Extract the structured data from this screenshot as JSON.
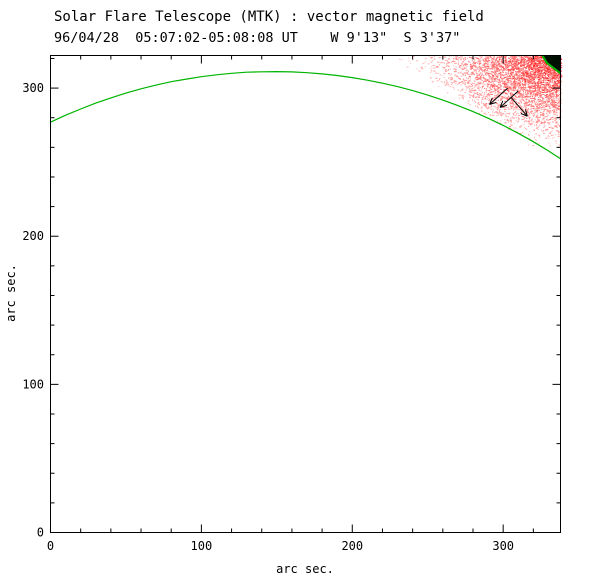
{
  "header": {
    "title": "Solar Flare Telescope (MTK) : vector magnetic field",
    "subtitle": "96/04/28  05:07:02-05:08:08 UT    W 9'13\"  S 3'37\""
  },
  "axes": {
    "xlabel": "arc sec.",
    "ylabel": "arc sec."
  },
  "chart_data": {
    "type": "line",
    "title": "Solar Flare Telescope (MTK) : vector magnetic field",
    "subtitle": "96/04/28  05:07:02-05:08:08 UT    W 9'13\"  S 3'37\"",
    "xlabel": "arc sec.",
    "ylabel": "arc sec.",
    "xlim": [
      0,
      338
    ],
    "ylim": [
      0,
      322
    ],
    "xticks": [
      0,
      100,
      200,
      300
    ],
    "yticks": [
      0,
      100,
      200,
      300
    ],
    "minor_tick_interval": 20,
    "grid": false,
    "axis_color": "#000000",
    "background": "#ffffff",
    "series": [
      {
        "name": "solar-limb",
        "color": "#00b400",
        "x": [
          0,
          10,
          20,
          30,
          40,
          50,
          60,
          70,
          80,
          90,
          100,
          110,
          120,
          130,
          140,
          150,
          160,
          170,
          180,
          190,
          200,
          210,
          220,
          230,
          240,
          250,
          260,
          270,
          280,
          290,
          300,
          310,
          320,
          330,
          338
        ],
        "y": [
          277.0,
          281.7,
          285.9,
          289.9,
          293.4,
          296.6,
          299.5,
          302.0,
          304.3,
          306.1,
          307.7,
          309.0,
          310.0,
          310.7,
          311.0,
          311.1,
          310.9,
          310.4,
          309.6,
          308.5,
          307.1,
          305.3,
          303.3,
          301.0,
          298.3,
          295.3,
          291.9,
          288.2,
          284.1,
          279.7,
          274.8,
          269.5,
          263.8,
          257.6,
          252.3
        ]
      }
    ],
    "field_region": {
      "name": "vector-magnetic-field-speckle-patch",
      "triangle": [
        [
          228,
          322
        ],
        [
          338,
          322
        ],
        [
          338,
          252
        ]
      ],
      "color_weak": "#ffc9c9",
      "color_strong": "#ff2020"
    },
    "dark_patch": {
      "points": [
        [
          326,
          322
        ],
        [
          338,
          322
        ],
        [
          338,
          310
        ],
        [
          329,
          317
        ]
      ],
      "fill": "#001000",
      "edge_color": "#00b400"
    },
    "arrows": {
      "color": "#000000",
      "items": [
        {
          "x1": 303,
          "y1": 300,
          "x2": 291,
          "y2": 289
        },
        {
          "x1": 310,
          "y1": 298,
          "x2": 298,
          "y2": 287
        },
        {
          "x1": 305,
          "y1": 294,
          "x2": 316,
          "y2": 281
        }
      ]
    }
  }
}
